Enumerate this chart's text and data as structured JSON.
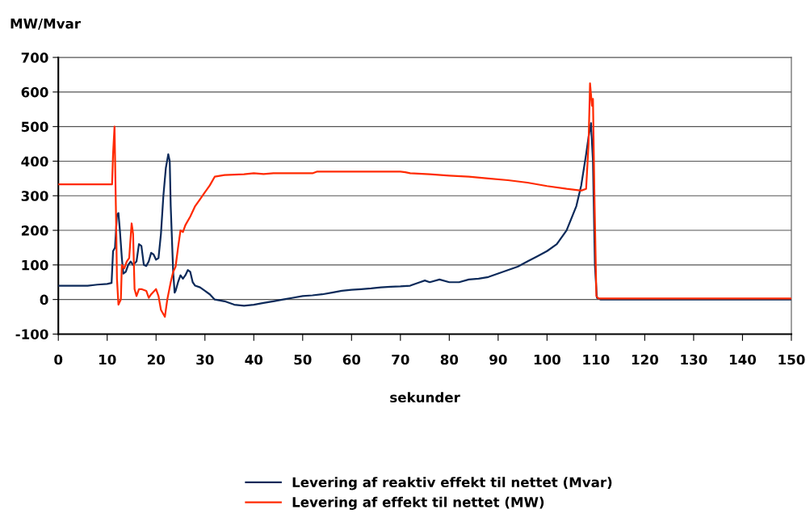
{
  "chart_data": {
    "type": "line",
    "ylabel": "MW/Mvar",
    "xlabel": "sekunder",
    "xlim": [
      0,
      150
    ],
    "xticks": [
      0,
      10,
      20,
      30,
      40,
      50,
      60,
      70,
      80,
      90,
      100,
      110,
      120,
      130,
      140,
      150
    ],
    "ylim": [
      -100,
      700
    ],
    "yticks": [
      -100,
      0,
      100,
      200,
      300,
      400,
      500,
      600,
      700
    ],
    "grid": "y",
    "legend": "bottom",
    "marker": "none",
    "line_style": "solid",
    "series": [
      {
        "name": "Levering af reaktiv effekt til nettet (Mvar)",
        "color": "#0c2a5a",
        "x": [
          0,
          6,
          8,
          10,
          10.9,
          11.2,
          11.6,
          12,
          12.3,
          12.6,
          13,
          13.3,
          13.8,
          14.3,
          14.8,
          15.3,
          16,
          16.5,
          17,
          17.5,
          18,
          18.5,
          19,
          19.5,
          20,
          20.5,
          21,
          21.5,
          22,
          22.5,
          22.8,
          23,
          23.5,
          23.8,
          24,
          24.5,
          25,
          25.5,
          26,
          26.5,
          27,
          27.5,
          28,
          29,
          30,
          31,
          32,
          34,
          36,
          38,
          40,
          42,
          44,
          46,
          48,
          50,
          52,
          54,
          56,
          58,
          60,
          62,
          64,
          66,
          68,
          70,
          72,
          74,
          75,
          76,
          78,
          80,
          82,
          84,
          86,
          88,
          90,
          92,
          94,
          96,
          98,
          100,
          102,
          104,
          106,
          107,
          108,
          108.5,
          109,
          109.4,
          109.8,
          110.2,
          111,
          150
        ],
        "values": [
          40,
          40,
          43,
          45,
          48,
          140,
          150,
          245,
          250,
          200,
          120,
          75,
          80,
          100,
          110,
          100,
          110,
          160,
          155,
          100,
          97,
          110,
          135,
          130,
          115,
          120,
          190,
          300,
          380,
          420,
          400,
          270,
          80,
          20,
          25,
          50,
          70,
          60,
          70,
          85,
          80,
          50,
          40,
          35,
          25,
          15,
          0,
          -5,
          -15,
          -18,
          -15,
          -10,
          -5,
          0,
          5,
          10,
          12,
          15,
          20,
          25,
          28,
          30,
          32,
          35,
          37,
          38,
          40,
          50,
          55,
          50,
          58,
          50,
          50,
          58,
          60,
          65,
          75,
          85,
          95,
          110,
          125,
          140,
          160,
          200,
          270,
          330,
          420,
          470,
          510,
          400,
          100,
          5,
          0,
          0
        ]
      },
      {
        "name": "Levering af effekt til nettet (MW)",
        "color": "#ff2a00",
        "x": [
          0,
          11,
          11.2,
          11.5,
          11.8,
          12,
          12.3,
          12.8,
          13,
          13.5,
          14,
          14.5,
          15,
          15.3,
          15.6,
          16,
          16.5,
          17,
          18,
          18.5,
          19,
          20,
          20.5,
          21,
          21.8,
          22.3,
          23,
          23.5,
          24,
          24.5,
          25,
          25.5,
          26,
          27,
          28,
          29,
          30,
          31,
          32,
          34,
          38,
          40,
          42,
          44,
          52,
          53,
          70,
          71,
          72,
          76,
          80,
          84,
          88,
          92,
          96,
          100,
          104,
          107,
          108,
          108.5,
          108.8,
          109.2,
          109.4,
          109.7,
          110.1,
          110.5,
          150
        ],
        "values": [
          333,
          333,
          420,
          500,
          250,
          60,
          -15,
          0,
          100,
          90,
          110,
          120,
          220,
          190,
          30,
          10,
          30,
          30,
          25,
          5,
          15,
          30,
          10,
          -30,
          -50,
          0,
          50,
          80,
          95,
          150,
          200,
          195,
          215,
          240,
          270,
          290,
          310,
          330,
          355,
          360,
          362,
          365,
          363,
          365,
          365,
          370,
          370,
          368,
          365,
          362,
          358,
          355,
          350,
          345,
          338,
          328,
          320,
          315,
          320,
          450,
          625,
          560,
          580,
          300,
          10,
          3,
          3
        ]
      }
    ]
  }
}
